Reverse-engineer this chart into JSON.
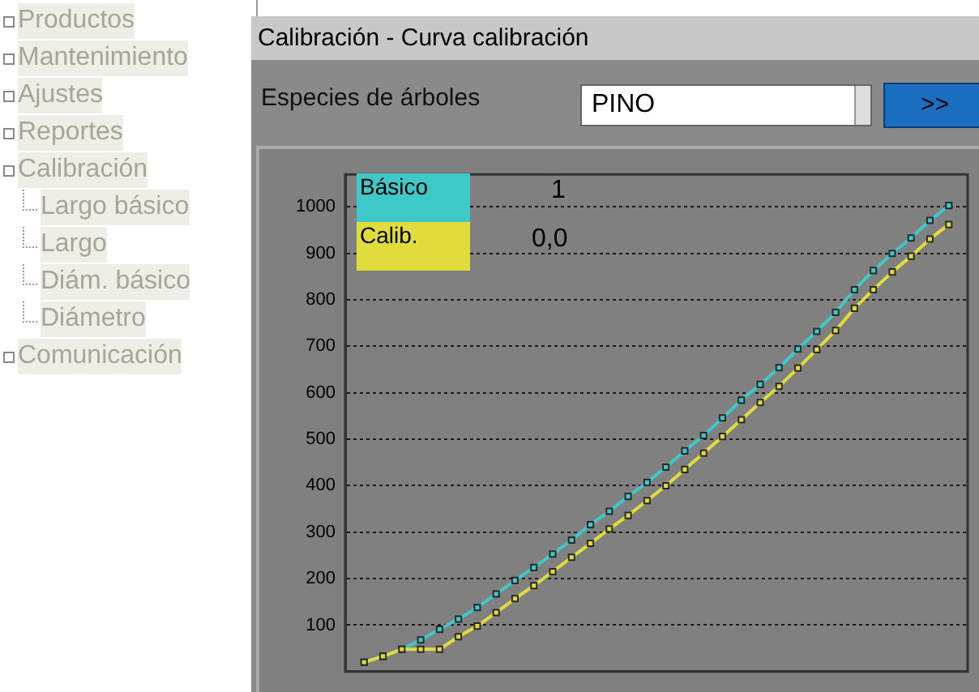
{
  "chart_data": {
    "type": "line",
    "title": "Calibración - Curva calibración",
    "categories": [
      null,
      null,
      null,
      null,
      null,
      null,
      null,
      null,
      null,
      null,
      null,
      null,
      null,
      null,
      null,
      null,
      null,
      null,
      null,
      null,
      null,
      null,
      null,
      null,
      null,
      null,
      null,
      null,
      null,
      null,
      null,
      null,
      null,
      null
    ],
    "series": [
      {
        "name": "Básico",
        "color": "#3ec8c8",
        "values": [
          null,
          20,
          33,
          48,
          68,
          91,
          113,
          138,
          167,
          196,
          224,
          253,
          283,
          316,
          345,
          377,
          407,
          440,
          475,
          508,
          546,
          584,
          618,
          654,
          694,
          732,
          773,
          822,
          863,
          900,
          933,
          971,
          1003,
          null
        ]
      },
      {
        "name": "Calib.",
        "color": "#e0dc3c",
        "values": [
          null,
          20,
          33,
          48,
          48,
          48,
          75,
          98,
          127,
          157,
          185,
          215,
          246,
          276,
          307,
          336,
          368,
          400,
          435,
          470,
          506,
          542,
          579,
          614,
          653,
          693,
          734,
          782,
          822,
          860,
          894,
          931,
          962,
          null
        ]
      }
    ],
    "ylim": [
      0,
      1070
    ],
    "yticks": [
      100,
      200,
      300,
      400,
      500,
      600,
      700,
      800,
      900,
      1000
    ],
    "grid": "y",
    "legend": "top left",
    "marker": "square",
    "line_style": "solid",
    "tick_labels": "y",
    "annotations": [
      "Productos",
      "Mantenimiento",
      "Ajustes",
      "Reportes",
      "Calibración",
      "Largo básico",
      "Largo",
      "Diám. básico",
      "Diámetro",
      "Comunicación",
      "Especies de árboles",
      "PINO",
      ">>",
      "1",
      "0,0"
    ]
  }
}
